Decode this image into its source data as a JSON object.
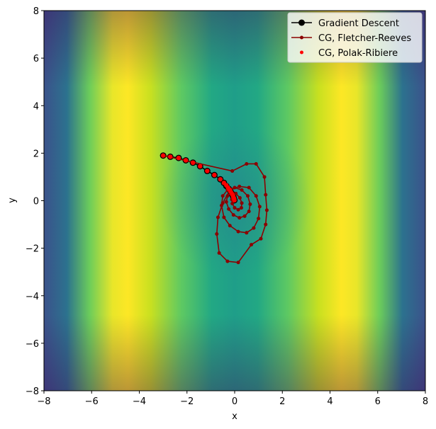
{
  "chart_data": {
    "type": "line",
    "title": "",
    "xlabel": "x",
    "ylabel": "y",
    "xlim": [
      -8,
      8
    ],
    "ylim": [
      -8,
      8
    ],
    "x_ticks": [
      -8,
      -6,
      -4,
      -2,
      0,
      2,
      4,
      6,
      8
    ],
    "y_ticks": [
      -8,
      -6,
      -4,
      -2,
      0,
      2,
      4,
      6,
      8
    ],
    "x_tick_labels": [
      "−8",
      "−6",
      "−4",
      "−2",
      "0",
      "2",
      "4",
      "6",
      "8"
    ],
    "y_tick_labels": [
      "−8",
      "−6",
      "−4",
      "−2",
      "0",
      "2",
      "4",
      "6",
      "8"
    ],
    "grid": false,
    "legend_position": "top-right",
    "background": "viridis contour, maxima near (-5, 0) and (5, 0)",
    "series": [
      {
        "name": "Gradient Descent",
        "color": "#000000",
        "marker": "large circle",
        "x": [
          -3.0,
          -2.7,
          -2.35,
          -2.05,
          -1.75,
          -1.45,
          -1.15,
          -0.85,
          -0.6,
          -0.45,
          -0.35,
          -0.25,
          -0.18,
          -0.12,
          -0.08,
          -0.05,
          -0.03,
          -0.01
        ],
        "y": [
          1.9,
          1.85,
          1.8,
          1.7,
          1.6,
          1.45,
          1.25,
          1.08,
          0.9,
          0.75,
          0.62,
          0.5,
          0.4,
          0.3,
          0.22,
          0.15,
          0.08,
          0.02
        ]
      },
      {
        "name": "CG, Fletcher-Reeves",
        "color": "#8b0000",
        "marker": "small circle",
        "x": [
          -3.0,
          -0.1,
          0.5,
          0.9,
          1.25,
          1.3,
          1.35,
          1.3,
          1.1,
          0.7,
          0.15,
          -0.3,
          -0.65,
          -0.75,
          -0.7,
          -0.5,
          -0.2,
          0.2,
          0.6,
          0.9,
          1.05,
          1.0,
          0.8,
          0.5,
          0.15,
          -0.2,
          -0.45,
          -0.55,
          -0.5,
          -0.3,
          0.0,
          0.3,
          0.55,
          0.65,
          0.6,
          0.42,
          0.2,
          -0.05,
          -0.25,
          -0.35,
          -0.3,
          -0.15,
          0.05,
          0.22,
          0.3,
          0.28,
          0.15,
          0.0,
          -0.1,
          -0.12,
          -0.05,
          0.0
        ],
        "y": [
          1.9,
          1.25,
          1.55,
          1.55,
          1.0,
          0.25,
          -0.4,
          -1.0,
          -1.6,
          -1.85,
          -2.6,
          -2.55,
          -2.2,
          -1.4,
          -0.7,
          -0.1,
          0.45,
          0.6,
          0.55,
          0.2,
          -0.25,
          -0.75,
          -1.15,
          -1.35,
          -1.3,
          -1.05,
          -0.7,
          -0.2,
          0.2,
          0.45,
          0.55,
          0.45,
          0.2,
          -0.15,
          -0.45,
          -0.65,
          -0.72,
          -0.6,
          -0.35,
          -0.05,
          0.2,
          0.32,
          0.3,
          0.12,
          -0.1,
          -0.3,
          -0.38,
          -0.3,
          -0.12,
          0.05,
          0.12,
          0.0
        ]
      },
      {
        "name": "CG, Polak-Ribiere",
        "color": "#ff0000",
        "marker": "small dot",
        "x": [
          -3.0,
          -2.7,
          -2.35,
          -2.05,
          -1.75,
          -1.45,
          -1.15,
          -0.85,
          -0.6,
          -0.45,
          -0.35,
          -0.28,
          -0.22,
          -0.17,
          -0.13,
          -0.1,
          -0.07,
          -0.05,
          -0.03,
          -0.02,
          -0.01
        ],
        "y": [
          1.9,
          1.85,
          1.8,
          1.7,
          1.6,
          1.45,
          1.25,
          1.08,
          0.9,
          0.75,
          0.65,
          0.55,
          0.47,
          0.39,
          0.32,
          0.26,
          0.2,
          0.15,
          0.1,
          0.06,
          0.02
        ]
      }
    ]
  }
}
